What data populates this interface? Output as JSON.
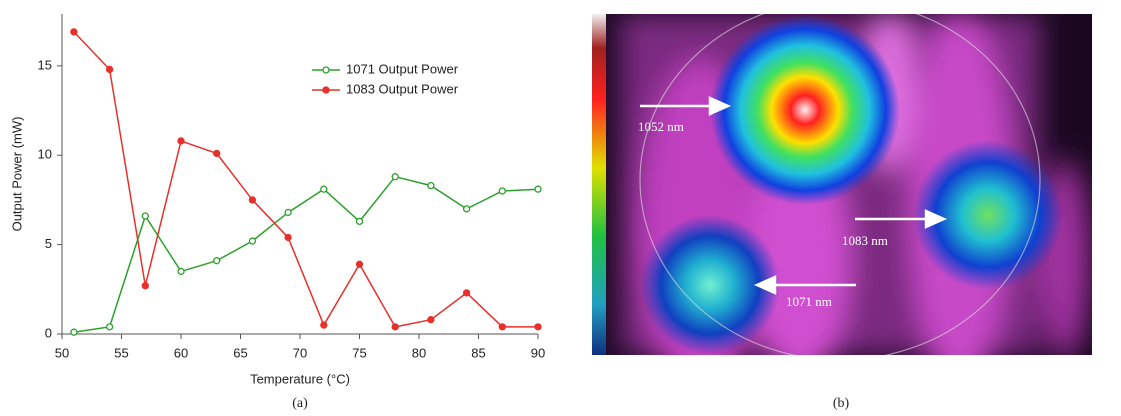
{
  "chart_data": {
    "type": "line",
    "x": [
      51,
      54,
      57,
      60,
      63,
      66,
      69,
      72,
      75,
      78,
      81,
      84,
      87,
      90
    ],
    "series": [
      {
        "name": "1071 Output Power",
        "color": "#2ca02c",
        "marker": "open",
        "values": [
          0.1,
          0.4,
          6.6,
          3.5,
          4.1,
          5.2,
          6.8,
          8.1,
          6.3,
          8.8,
          8.3,
          7.0,
          8.0,
          8.1
        ]
      },
      {
        "name": "1083 Output Power",
        "color": "#e8302a",
        "marker": "filled",
        "values": [
          16.9,
          14.8,
          2.7,
          10.8,
          10.1,
          7.5,
          5.4,
          0.5,
          3.9,
          0.4,
          0.8,
          2.3,
          0.4,
          0.4
        ]
      }
    ],
    "xlim": [
      50,
      90
    ],
    "xticks": [
      50,
      55,
      60,
      65,
      70,
      75,
      80,
      85,
      90
    ],
    "ylim": [
      0,
      17.9
    ],
    "yticks": [
      0,
      5,
      10,
      15
    ],
    "xlabel": "Temperature (°C)",
    "ylabel": "Output Power (mW)",
    "caption": "(a)"
  },
  "image": {
    "labels": [
      "1052 nm",
      "1083 nm",
      "1071 nm"
    ],
    "caption": "(b)"
  }
}
